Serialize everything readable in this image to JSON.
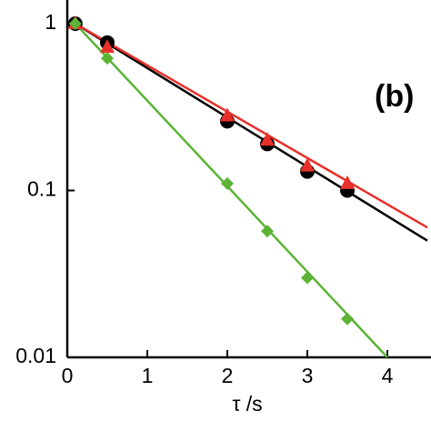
{
  "chart_data": {
    "type": "line",
    "xlabel": "τ /s",
    "annotation": "(b)",
    "log_y": true,
    "xlim": [
      0,
      4.5
    ],
    "ylim": [
      0.01,
      1
    ],
    "xticks": [
      0,
      1,
      2,
      3,
      4
    ],
    "yticks": [
      0.01,
      0.1,
      1
    ],
    "series": [
      {
        "color": "#000000",
        "marker": "circle",
        "x": [
          0.1,
          0.5,
          2,
          2.5,
          3,
          3.5
        ],
        "values": [
          1,
          0.77,
          0.26,
          0.19,
          0.13,
          0.1
        ]
      },
      {
        "color": "#e8302a",
        "marker": "triangle",
        "x": [
          0.1,
          0.5,
          2,
          2.5,
          3,
          3.5
        ],
        "values": [
          1,
          0.72,
          0.28,
          0.2,
          0.14,
          0.11
        ]
      },
      {
        "color": "#5cb335",
        "marker": "diamond",
        "x": [
          0.1,
          0.5,
          2,
          2.5,
          3,
          3.5
        ],
        "values": [
          1,
          0.62,
          0.11,
          0.057,
          0.03,
          0.017
        ]
      },
      {
        "color": "#000000",
        "marker": "none",
        "x": [
          0.1,
          4.5
        ],
        "values": [
          1,
          0.05
        ]
      },
      {
        "color": "#e8302a",
        "marker": "none",
        "x": [
          0.1,
          4.5
        ],
        "values": [
          1,
          0.06
        ]
      },
      {
        "color": "#5cb335",
        "marker": "none",
        "x": [
          0.1,
          4
        ],
        "values": [
          1,
          0.01
        ]
      }
    ]
  }
}
